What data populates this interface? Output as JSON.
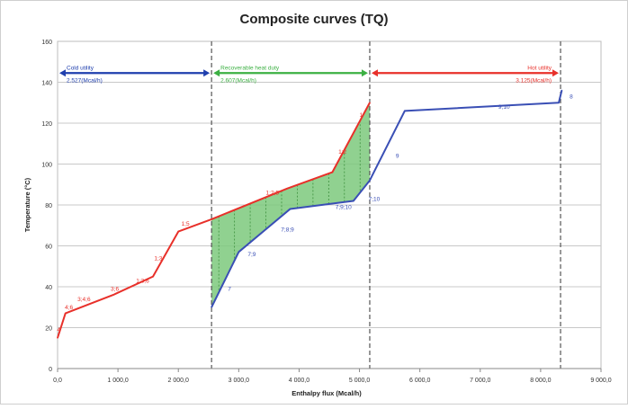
{
  "chart_data": {
    "type": "line",
    "title": "Composite curves (TQ)",
    "xlabel": "Enthalpy flux (Mcal/h)",
    "ylabel": "Temperature (°C)",
    "xlim": [
      0,
      9000
    ],
    "ylim": [
      0,
      160
    ],
    "x_ticks": [
      0,
      1000,
      2000,
      3000,
      4000,
      5000,
      6000,
      7000,
      8000,
      9000
    ],
    "x_tick_labels": [
      "0,0",
      "1 000,0",
      "2 000,0",
      "3 000,0",
      "4 000,0",
      "5 000,0",
      "6 000,0",
      "7 000,0",
      "8 000,0",
      "9 000,0"
    ],
    "y_ticks": [
      0,
      20,
      40,
      60,
      80,
      100,
      120,
      140,
      160
    ],
    "y_tick_labels": [
      "0",
      "20",
      "40",
      "60",
      "80",
      "100",
      "120",
      "140",
      "160"
    ],
    "grid": true,
    "legend": "none",
    "colors": {
      "hot_curve": "#e8302a",
      "cold_curve": "#3a4fb5",
      "cold_utility": "#1f3fae",
      "recoverable": "#3cb043",
      "hot_utility": "#e8302a",
      "fill": "#7cc97c",
      "divider": "#555555"
    },
    "series": [
      {
        "role": "hot",
        "x": [
          0,
          130,
          920,
          1580,
          2000,
          2550,
          3800,
          4550,
          5170
        ],
        "y": [
          15,
          27,
          36,
          45,
          67,
          73,
          88,
          96,
          130
        ],
        "labels": [
          {
            "text": "4",
            "x": -10,
            "y": 18
          },
          {
            "text": "4;6",
            "x": 120,
            "y": 29
          },
          {
            "text": "3;4;6",
            "x": 330,
            "y": 33
          },
          {
            "text": "3;6",
            "x": 880,
            "y": 38
          },
          {
            "text": "1;3;6",
            "x": 1300,
            "y": 42
          },
          {
            "text": "1;3",
            "x": 1600,
            "y": 53
          },
          {
            "text": "1;5",
            "x": 2050,
            "y": 70
          },
          {
            "text": "1;2;5",
            "x": 3450,
            "y": 85
          },
          {
            "text": "1;2",
            "x": 4650,
            "y": 105
          },
          {
            "text": "1",
            "x": 5000,
            "y": 123
          }
        ]
      },
      {
        "role": "cold",
        "x": [
          2550,
          3000,
          3850,
          4900,
          5170,
          5750,
          8300,
          8350
        ],
        "y": [
          30,
          57,
          78,
          82,
          92,
          126,
          130,
          136
        ],
        "labels": [
          {
            "text": "7",
            "x": 2820,
            "y": 38
          },
          {
            "text": "7;9",
            "x": 3150,
            "y": 55
          },
          {
            "text": "7;8;9",
            "x": 3700,
            "y": 67
          },
          {
            "text": "7;9;10",
            "x": 4600,
            "y": 78
          },
          {
            "text": "7;10",
            "x": 5150,
            "y": 82
          },
          {
            "text": "9",
            "x": 5600,
            "y": 103
          },
          {
            "text": "9;10",
            "x": 7300,
            "y": 127
          },
          {
            "text": "8",
            "x": 8480,
            "y": 132
          }
        ]
      }
    ],
    "dividers": [
      2550,
      5170,
      8330
    ],
    "annotations": {
      "cold_utility": {
        "title": "Cold utility",
        "value": "2.527(Mcal/h)",
        "x_from": 0,
        "x_to": 2550
      },
      "recoverable": {
        "title": "Recoverable heat duty",
        "value": "2.607(Mcal/h)",
        "x_from": 2550,
        "x_to": 5170
      },
      "hot_utility": {
        "title": "Hot utility",
        "value": "3.125(Mcal/h)",
        "x_from": 5170,
        "x_to": 8330
      }
    }
  }
}
